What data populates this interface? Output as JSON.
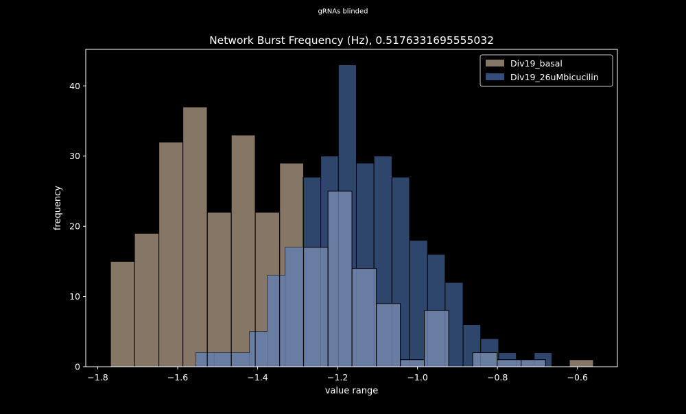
{
  "colors": {
    "background": "#000000",
    "axes": "#ffffff",
    "text": "#ffffff",
    "edge": "#000000",
    "basal": "#857665",
    "bicucilin": "#334c78",
    "overlap": "#6f82a7"
  },
  "chart_data": {
    "type": "histogram",
    "suptitle": "gRNAs blinded",
    "title": "Network Burst Frequency (Hz), 0.5176331695555032",
    "xlabel": "value range",
    "ylabel": "frequency",
    "xlim": [
      -1.83,
      -0.5
    ],
    "ylim": [
      0,
      45.2
    ],
    "xticks": [
      -1.8,
      -1.6,
      -1.4,
      -1.2,
      -1.0,
      -0.8,
      -0.6
    ],
    "xtick_labels": [
      "−1.8",
      "−1.6",
      "−1.4",
      "−1.2",
      "−1.0",
      "−0.8",
      "−0.6"
    ],
    "yticks": [
      0,
      10,
      20,
      30,
      40
    ],
    "ytick_labels": [
      "0",
      "10",
      "20",
      "30",
      "40"
    ],
    "legend_position": "top-right",
    "series": [
      {
        "name": "Div19_basal",
        "color_key": "basal",
        "bins": [
          {
            "x0": -1.768,
            "x1": -1.708,
            "count": 15
          },
          {
            "x0": -1.708,
            "x1": -1.647,
            "count": 19
          },
          {
            "x0": -1.647,
            "x1": -1.587,
            "count": 32
          },
          {
            "x0": -1.587,
            "x1": -1.526,
            "count": 37
          },
          {
            "x0": -1.526,
            "x1": -1.466,
            "count": 22
          },
          {
            "x0": -1.466,
            "x1": -1.406,
            "count": 33
          },
          {
            "x0": -1.406,
            "x1": -1.345,
            "count": 22
          },
          {
            "x0": -1.345,
            "x1": -1.285,
            "count": 29
          },
          {
            "x0": -1.285,
            "x1": -1.224,
            "count": 17
          },
          {
            "x0": -1.224,
            "x1": -1.164,
            "count": 25
          },
          {
            "x0": -1.164,
            "x1": -1.103,
            "count": 14
          },
          {
            "x0": -1.103,
            "x1": -1.043,
            "count": 9
          },
          {
            "x0": -1.043,
            "x1": -0.983,
            "count": 1
          },
          {
            "x0": -0.983,
            "x1": -0.922,
            "count": 8
          },
          {
            "x0": -0.922,
            "x1": -0.862,
            "count": 0
          },
          {
            "x0": -0.862,
            "x1": -0.801,
            "count": 2
          },
          {
            "x0": -0.801,
            "x1": -0.741,
            "count": 1
          },
          {
            "x0": -0.741,
            "x1": -0.68,
            "count": 1
          },
          {
            "x0": -0.68,
            "x1": -0.62,
            "count": 0
          },
          {
            "x0": -0.62,
            "x1": -0.56,
            "count": 1
          }
        ]
      },
      {
        "name": "Div19_26uMbicucilin",
        "color_key": "bicucilin",
        "bins": [
          {
            "x0": -1.554,
            "x1": -1.509,
            "count": 2
          },
          {
            "x0": -1.509,
            "x1": -1.465,
            "count": 2
          },
          {
            "x0": -1.465,
            "x1": -1.42,
            "count": 2
          },
          {
            "x0": -1.42,
            "x1": -1.376,
            "count": 5
          },
          {
            "x0": -1.376,
            "x1": -1.331,
            "count": 13
          },
          {
            "x0": -1.331,
            "x1": -1.287,
            "count": 17
          },
          {
            "x0": -1.287,
            "x1": -1.242,
            "count": 27
          },
          {
            "x0": -1.242,
            "x1": -1.198,
            "count": 30
          },
          {
            "x0": -1.198,
            "x1": -1.153,
            "count": 43
          },
          {
            "x0": -1.153,
            "x1": -1.109,
            "count": 29
          },
          {
            "x0": -1.109,
            "x1": -1.064,
            "count": 30
          },
          {
            "x0": -1.064,
            "x1": -1.02,
            "count": 27
          },
          {
            "x0": -1.02,
            "x1": -0.975,
            "count": 18
          },
          {
            "x0": -0.975,
            "x1": -0.931,
            "count": 16
          },
          {
            "x0": -0.931,
            "x1": -0.886,
            "count": 12
          },
          {
            "x0": -0.886,
            "x1": -0.842,
            "count": 6
          },
          {
            "x0": -0.842,
            "x1": -0.797,
            "count": 4
          },
          {
            "x0": -0.797,
            "x1": -0.753,
            "count": 2
          },
          {
            "x0": -0.753,
            "x1": -0.708,
            "count": 1
          },
          {
            "x0": -0.708,
            "x1": -0.664,
            "count": 2
          }
        ]
      }
    ]
  }
}
